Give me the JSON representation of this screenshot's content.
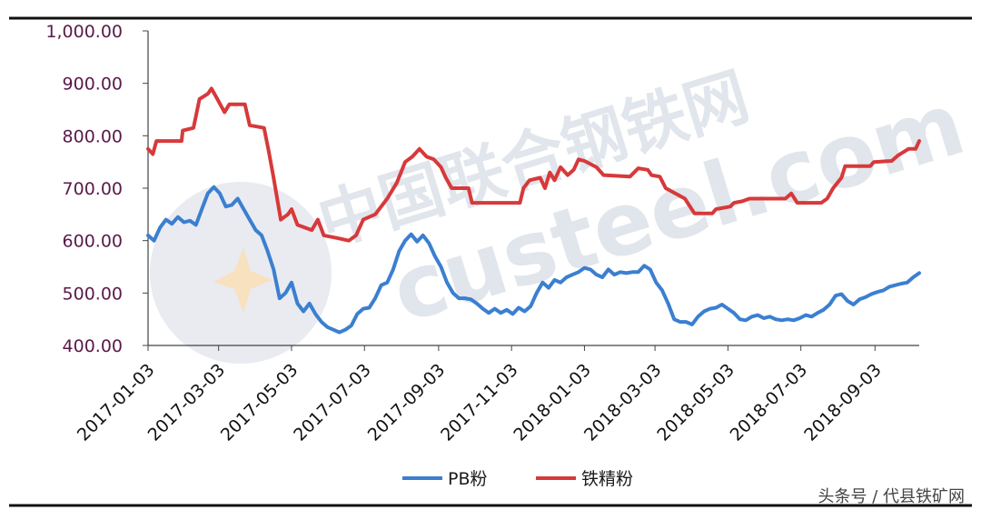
{
  "chart_data": {
    "type": "line",
    "xlabel": "",
    "ylabel": "",
    "ylim": [
      400,
      1000
    ],
    "y_ticks": [
      "1,000.00",
      "900.00",
      "800.00",
      "700.00",
      "600.00",
      "500.00",
      "400.00"
    ],
    "x_ticks": [
      "2017-01-03",
      "2017-03-03",
      "2017-05-03",
      "2017-07-03",
      "2017-09-03",
      "2017-11-03",
      "2018-01-03",
      "2018-03-03",
      "2018-05-03",
      "2018-07-03",
      "2018-09-03"
    ],
    "grid": false,
    "legend_position": "bottom",
    "series": [
      {
        "name": "PB粉",
        "color": "#3b7fd0",
        "points": [
          [
            "2017-01-03",
            610
          ],
          [
            "2017-01-08",
            600
          ],
          [
            "2017-01-13",
            625
          ],
          [
            "2017-01-18",
            640
          ],
          [
            "2017-01-23",
            632
          ],
          [
            "2017-01-28",
            645
          ],
          [
            "2017-02-02",
            635
          ],
          [
            "2017-02-07",
            638
          ],
          [
            "2017-02-12",
            630
          ],
          [
            "2017-02-17",
            660
          ],
          [
            "2017-02-22",
            690
          ],
          [
            "2017-02-27",
            702
          ],
          [
            "2017-03-04",
            690
          ],
          [
            "2017-03-09",
            665
          ],
          [
            "2017-03-14",
            668
          ],
          [
            "2017-03-19",
            680
          ],
          [
            "2017-03-24",
            660
          ],
          [
            "2017-03-29",
            640
          ],
          [
            "2017-04-03",
            620
          ],
          [
            "2017-04-08",
            610
          ],
          [
            "2017-04-13",
            580
          ],
          [
            "2017-04-18",
            545
          ],
          [
            "2017-04-23",
            490
          ],
          [
            "2017-04-28",
            500
          ],
          [
            "2017-05-03",
            520
          ],
          [
            "2017-05-08",
            480
          ],
          [
            "2017-05-13",
            465
          ],
          [
            "2017-05-18",
            480
          ],
          [
            "2017-05-23",
            460
          ],
          [
            "2017-05-28",
            445
          ],
          [
            "2017-06-02",
            435
          ],
          [
            "2017-06-07",
            430
          ],
          [
            "2017-06-12",
            425
          ],
          [
            "2017-06-17",
            430
          ],
          [
            "2017-06-22",
            438
          ],
          [
            "2017-06-27",
            460
          ],
          [
            "2017-07-02",
            470
          ],
          [
            "2017-07-07",
            472
          ],
          [
            "2017-07-12",
            490
          ],
          [
            "2017-07-17",
            515
          ],
          [
            "2017-07-22",
            520
          ],
          [
            "2017-07-27",
            545
          ],
          [
            "2017-08-01",
            580
          ],
          [
            "2017-08-06",
            600
          ],
          [
            "2017-08-11",
            612
          ],
          [
            "2017-08-16",
            598
          ],
          [
            "2017-08-21",
            610
          ],
          [
            "2017-08-26",
            595
          ],
          [
            "2017-08-31",
            570
          ],
          [
            "2017-09-05",
            550
          ],
          [
            "2017-09-10",
            520
          ],
          [
            "2017-09-15",
            500
          ],
          [
            "2017-09-20",
            490
          ],
          [
            "2017-09-25",
            490
          ],
          [
            "2017-09-30",
            488
          ],
          [
            "2017-10-05",
            480
          ],
          [
            "2017-10-10",
            470
          ],
          [
            "2017-10-15",
            462
          ],
          [
            "2017-10-20",
            470
          ],
          [
            "2017-10-25",
            462
          ],
          [
            "2017-10-30",
            468
          ],
          [
            "2017-11-04",
            460
          ],
          [
            "2017-11-09",
            472
          ],
          [
            "2017-11-14",
            465
          ],
          [
            "2017-11-19",
            475
          ],
          [
            "2017-11-24",
            500
          ],
          [
            "2017-11-29",
            520
          ],
          [
            "2017-12-04",
            510
          ],
          [
            "2017-12-09",
            525
          ],
          [
            "2017-12-14",
            520
          ],
          [
            "2017-12-19",
            530
          ],
          [
            "2017-12-24",
            535
          ],
          [
            "2017-12-29",
            540
          ],
          [
            "2018-01-03",
            548
          ],
          [
            "2018-01-08",
            545
          ],
          [
            "2018-01-13",
            535
          ],
          [
            "2018-01-18",
            530
          ],
          [
            "2018-01-23",
            545
          ],
          [
            "2018-01-28",
            535
          ],
          [
            "2018-02-02",
            540
          ],
          [
            "2018-02-07",
            538
          ],
          [
            "2018-02-12",
            540
          ],
          [
            "2018-02-17",
            540
          ],
          [
            "2018-02-22",
            552
          ],
          [
            "2018-02-27",
            545
          ],
          [
            "2018-03-04",
            520
          ],
          [
            "2018-03-09",
            505
          ],
          [
            "2018-03-14",
            480
          ],
          [
            "2018-03-19",
            450
          ],
          [
            "2018-03-24",
            445
          ],
          [
            "2018-03-29",
            445
          ],
          [
            "2018-04-03",
            440
          ],
          [
            "2018-04-08",
            455
          ],
          [
            "2018-04-13",
            465
          ],
          [
            "2018-04-18",
            470
          ],
          [
            "2018-04-23",
            472
          ],
          [
            "2018-04-28",
            478
          ],
          [
            "2018-05-03",
            470
          ],
          [
            "2018-05-08",
            462
          ],
          [
            "2018-05-13",
            450
          ],
          [
            "2018-05-18",
            448
          ],
          [
            "2018-05-23",
            455
          ],
          [
            "2018-05-28",
            458
          ],
          [
            "2018-06-02",
            452
          ],
          [
            "2018-06-07",
            455
          ],
          [
            "2018-06-12",
            450
          ],
          [
            "2018-06-17",
            448
          ],
          [
            "2018-06-22",
            450
          ],
          [
            "2018-06-27",
            448
          ],
          [
            "2018-07-02",
            452
          ],
          [
            "2018-07-07",
            458
          ],
          [
            "2018-07-12",
            455
          ],
          [
            "2018-07-17",
            462
          ],
          [
            "2018-07-22",
            468
          ],
          [
            "2018-07-27",
            478
          ],
          [
            "2018-08-01",
            495
          ],
          [
            "2018-08-06",
            498
          ],
          [
            "2018-08-11",
            485
          ],
          [
            "2018-08-16",
            478
          ],
          [
            "2018-08-21",
            488
          ],
          [
            "2018-08-26",
            492
          ],
          [
            "2018-08-31",
            498
          ],
          [
            "2018-09-05",
            502
          ],
          [
            "2018-09-10",
            505
          ],
          [
            "2018-09-15",
            512
          ],
          [
            "2018-09-20",
            515
          ],
          [
            "2018-09-25",
            518
          ],
          [
            "2018-09-30",
            520
          ],
          [
            "2018-10-05",
            530
          ],
          [
            "2018-10-10",
            538
          ]
        ]
      },
      {
        "name": "铁精粉",
        "color": "#d7393a",
        "points": [
          [
            "2017-01-03",
            775
          ],
          [
            "2017-01-07",
            765
          ],
          [
            "2017-01-10",
            790
          ],
          [
            "2017-01-31",
            790
          ],
          [
            "2017-02-01",
            810
          ],
          [
            "2017-02-10",
            815
          ],
          [
            "2017-02-15",
            870
          ],
          [
            "2017-02-22",
            880
          ],
          [
            "2017-02-25",
            890
          ],
          [
            "2017-03-02",
            870
          ],
          [
            "2017-03-08",
            845
          ],
          [
            "2017-03-12",
            860
          ],
          [
            "2017-03-25",
            860
          ],
          [
            "2017-03-29",
            820
          ],
          [
            "2017-04-10",
            815
          ],
          [
            "2017-04-14",
            770
          ],
          [
            "2017-04-18",
            720
          ],
          [
            "2017-04-24",
            640
          ],
          [
            "2017-04-30",
            650
          ],
          [
            "2017-05-03",
            660
          ],
          [
            "2017-05-08",
            630
          ],
          [
            "2017-05-20",
            620
          ],
          [
            "2017-05-25",
            640
          ],
          [
            "2017-05-30",
            610
          ],
          [
            "2017-06-10",
            605
          ],
          [
            "2017-06-20",
            600
          ],
          [
            "2017-06-26",
            610
          ],
          [
            "2017-07-02",
            640
          ],
          [
            "2017-07-12",
            650
          ],
          [
            "2017-07-22",
            680
          ],
          [
            "2017-07-30",
            710
          ],
          [
            "2017-08-06",
            750
          ],
          [
            "2017-08-12",
            760
          ],
          [
            "2017-08-18",
            775
          ],
          [
            "2017-08-24",
            760
          ],
          [
            "2017-08-30",
            755
          ],
          [
            "2017-09-05",
            740
          ],
          [
            "2017-09-09",
            720
          ],
          [
            "2017-09-14",
            700
          ],
          [
            "2017-09-28",
            700
          ],
          [
            "2017-10-01",
            672
          ],
          [
            "2017-11-10",
            672
          ],
          [
            "2017-11-13",
            700
          ],
          [
            "2017-11-18",
            715
          ],
          [
            "2017-11-27",
            720
          ],
          [
            "2017-12-01",
            700
          ],
          [
            "2017-12-05",
            730
          ],
          [
            "2017-12-09",
            715
          ],
          [
            "2017-12-14",
            740
          ],
          [
            "2017-12-20",
            725
          ],
          [
            "2017-12-25",
            735
          ],
          [
            "2017-12-29",
            755
          ],
          [
            "2018-01-03",
            752
          ],
          [
            "2018-01-13",
            740
          ],
          [
            "2018-01-19",
            725
          ],
          [
            "2018-02-10",
            722
          ],
          [
            "2018-02-17",
            738
          ],
          [
            "2018-02-25",
            735
          ],
          [
            "2018-02-28",
            725
          ],
          [
            "2018-03-07",
            722
          ],
          [
            "2018-03-12",
            700
          ],
          [
            "2018-03-20",
            690
          ],
          [
            "2018-03-28",
            680
          ],
          [
            "2018-04-05",
            652
          ],
          [
            "2018-04-20",
            652
          ],
          [
            "2018-04-23",
            660
          ],
          [
            "2018-05-05",
            665
          ],
          [
            "2018-05-08",
            672
          ],
          [
            "2018-05-15",
            675
          ],
          [
            "2018-05-21",
            680
          ],
          [
            "2018-06-20",
            680
          ],
          [
            "2018-06-25",
            690
          ],
          [
            "2018-06-30",
            672
          ],
          [
            "2018-07-20",
            672
          ],
          [
            "2018-07-25",
            680
          ],
          [
            "2018-07-30",
            700
          ],
          [
            "2018-08-06",
            720
          ],
          [
            "2018-08-09",
            742
          ],
          [
            "2018-08-30",
            742
          ],
          [
            "2018-09-02",
            750
          ],
          [
            "2018-09-17",
            752
          ],
          [
            "2018-09-22",
            762
          ],
          [
            "2018-10-01",
            775
          ],
          [
            "2018-10-07",
            775
          ],
          [
            "2018-10-10",
            790
          ]
        ]
      }
    ]
  },
  "watermark": {
    "line1": "中国联合钢铁网",
    "line2": "custeel.com"
  },
  "footer": {
    "credit": "头条号 / 代县铁矿网"
  }
}
